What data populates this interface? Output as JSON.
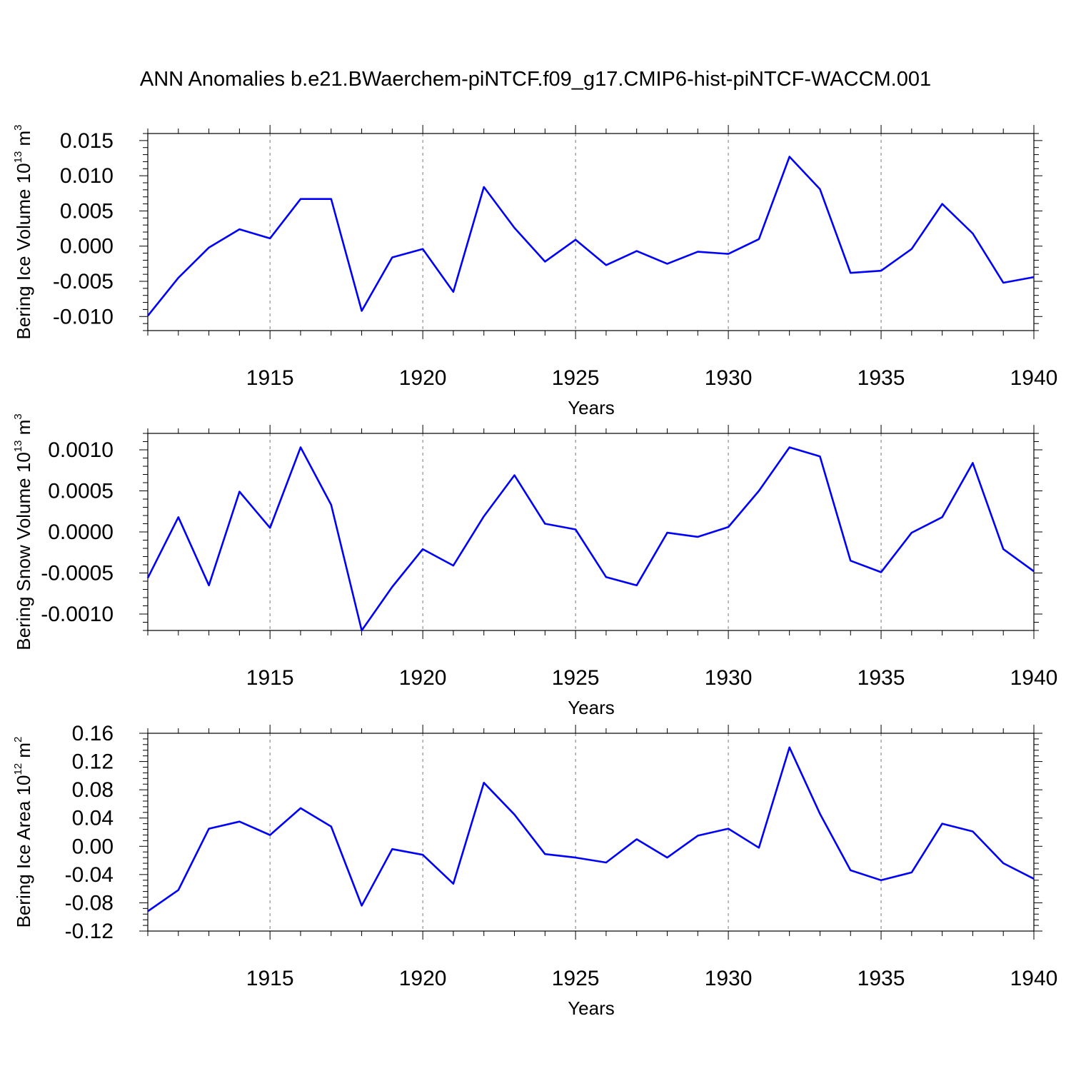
{
  "title": "ANN Anomalies b.e21.BWaerchem-piNTCF.f09_g17.CMIP6-hist-piNTCF-WACCM.001",
  "line_color": "#0000ff",
  "chart_data": [
    {
      "type": "line",
      "ylabel": "Bering Ice Volume 10",
      "ylabel_exp": "13",
      "ylabel_unit": " m",
      "ylabel_unit_exp": "3",
      "xlabel": "Years",
      "xlim": [
        1911,
        1940
      ],
      "ylim": [
        -0.012,
        0.016
      ],
      "yticks": [
        -0.01,
        -0.005,
        0.0,
        0.005,
        0.01,
        0.015
      ],
      "ytick_labels": [
        "-0.010",
        "-0.005",
        "0.000",
        "0.005",
        "0.010",
        "0.015"
      ],
      "xticks": [
        1915,
        1920,
        1925,
        1930,
        1935,
        1940
      ],
      "xtick_labels": [
        "1915",
        "1920",
        "1925",
        "1930",
        "1935",
        "1940"
      ],
      "x": [
        1911,
        1912,
        1913,
        1914,
        1915,
        1916,
        1917,
        1918,
        1919,
        1920,
        1921,
        1922,
        1923,
        1924,
        1925,
        1926,
        1927,
        1928,
        1929,
        1930,
        1931,
        1932,
        1933,
        1934,
        1935,
        1936,
        1937,
        1938,
        1939,
        1940
      ],
      "values": [
        -0.0099,
        -0.0045,
        -0.0002,
        0.0024,
        0.0011,
        0.0067,
        0.0067,
        -0.0092,
        -0.0016,
        -0.0004,
        -0.0065,
        0.0084,
        0.0026,
        -0.0022,
        0.0009,
        -0.0027,
        -0.0007,
        -0.0025,
        -0.0008,
        -0.0011,
        0.001,
        0.0127,
        0.0081,
        -0.0038,
        -0.0035,
        -0.0004,
        0.006,
        0.0018,
        -0.0052,
        -0.0044
      ]
    },
    {
      "type": "line",
      "ylabel": "Bering Snow Volume 10",
      "ylabel_exp": "13",
      "ylabel_unit": " m",
      "ylabel_unit_exp": "3",
      "xlabel": "Years",
      "xlim": [
        1911,
        1940
      ],
      "ylim": [
        -0.0012,
        0.0012
      ],
      "yticks": [
        -0.001,
        -0.0005,
        0.0,
        0.0005,
        0.001
      ],
      "ytick_labels": [
        "-0.0010",
        "-0.0005",
        "0.0000",
        "0.0005",
        "0.0010"
      ],
      "xticks": [
        1915,
        1920,
        1925,
        1930,
        1935,
        1940
      ],
      "xtick_labels": [
        "1915",
        "1920",
        "1925",
        "1930",
        "1935",
        "1940"
      ],
      "x": [
        1911,
        1912,
        1913,
        1914,
        1915,
        1916,
        1917,
        1918,
        1919,
        1920,
        1921,
        1922,
        1923,
        1924,
        1925,
        1926,
        1927,
        1928,
        1929,
        1930,
        1931,
        1932,
        1933,
        1934,
        1935,
        1936,
        1937,
        1938,
        1939,
        1940
      ],
      "values": [
        -0.00056,
        0.00018,
        -0.00065,
        0.00049,
        5e-05,
        0.00103,
        0.00033,
        -0.0012,
        -0.00067,
        -0.00021,
        -0.00041,
        0.00019,
        0.00069,
        0.0001,
        3e-05,
        -0.00055,
        -0.00065,
        -1e-05,
        -6e-05,
        6e-05,
        0.0005,
        0.00103,
        0.00092,
        -0.00035,
        -0.00049,
        -1e-05,
        0.00018,
        0.00084,
        -0.00021,
        -0.00048
      ]
    },
    {
      "type": "line",
      "ylabel": "Bering Ice Area 10",
      "ylabel_exp": "12",
      "ylabel_unit": " m",
      "ylabel_unit_exp": "2",
      "xlabel": "Years",
      "xlim": [
        1911,
        1940
      ],
      "ylim": [
        -0.12,
        0.16
      ],
      "yticks": [
        -0.12,
        -0.08,
        -0.04,
        0.0,
        0.04,
        0.08,
        0.12,
        0.16
      ],
      "ytick_labels": [
        "-0.12",
        "-0.08",
        "-0.04",
        "0.00",
        "0.04",
        "0.08",
        "0.12",
        "0.16"
      ],
      "xticks": [
        1915,
        1920,
        1925,
        1930,
        1935,
        1940
      ],
      "xtick_labels": [
        "1915",
        "1920",
        "1925",
        "1930",
        "1935",
        "1940"
      ],
      "x": [
        1911,
        1912,
        1913,
        1914,
        1915,
        1916,
        1917,
        1918,
        1919,
        1920,
        1921,
        1922,
        1923,
        1924,
        1925,
        1926,
        1927,
        1928,
        1929,
        1930,
        1931,
        1932,
        1933,
        1934,
        1935,
        1936,
        1937,
        1938,
        1939,
        1940
      ],
      "values": [
        -0.092,
        -0.062,
        0.025,
        0.035,
        0.016,
        0.054,
        0.028,
        -0.084,
        -0.004,
        -0.012,
        -0.053,
        0.09,
        0.045,
        -0.011,
        -0.016,
        -0.023,
        0.01,
        -0.016,
        0.015,
        0.025,
        -0.002,
        0.14,
        0.046,
        -0.034,
        -0.048,
        -0.037,
        0.032,
        0.021,
        -0.024,
        -0.046
      ]
    }
  ]
}
